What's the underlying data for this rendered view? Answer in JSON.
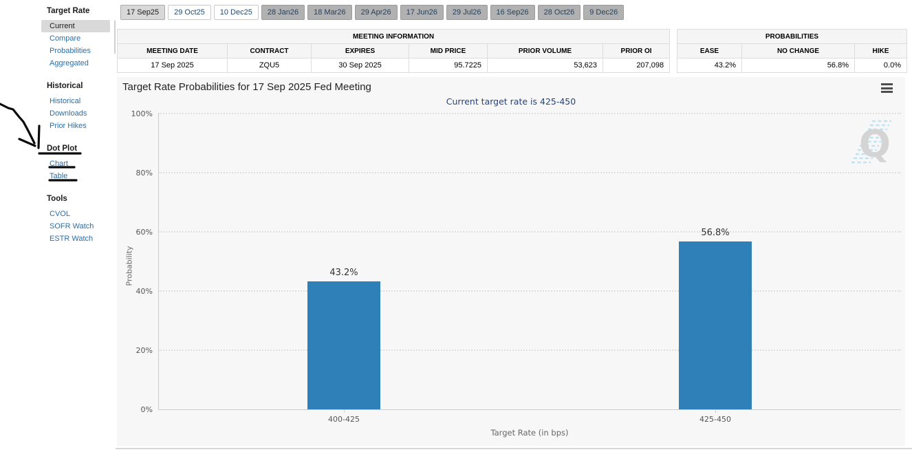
{
  "sidebar": {
    "sections": [
      {
        "title": "Target Rate",
        "items": [
          {
            "label": "Current",
            "selected": true
          },
          {
            "label": "Compare"
          },
          {
            "label": "Probabilities"
          },
          {
            "label": "Aggregated"
          }
        ]
      },
      {
        "title": "Historical",
        "items": [
          {
            "label": "Historical"
          },
          {
            "label": "Downloads"
          },
          {
            "label": "Prior Hikes"
          }
        ]
      },
      {
        "title": "Dot Plot",
        "items": [
          {
            "label": "Chart"
          },
          {
            "label": "Table"
          }
        ]
      },
      {
        "title": "Tools",
        "items": [
          {
            "label": "CVOL"
          },
          {
            "label": "SOFR Watch"
          },
          {
            "label": "ESTR Watch"
          }
        ]
      }
    ]
  },
  "meeting_tabs": [
    {
      "label": "17 Sep25",
      "state": "selected"
    },
    {
      "label": "29 Oct25",
      "state": "white"
    },
    {
      "label": "10 Dec25",
      "state": "white"
    },
    {
      "label": "28 Jan26",
      "state": "gray"
    },
    {
      "label": "18 Mar26",
      "state": "gray"
    },
    {
      "label": "29 Apr26",
      "state": "gray"
    },
    {
      "label": "17 Jun26",
      "state": "gray"
    },
    {
      "label": "29 Jul26",
      "state": "gray"
    },
    {
      "label": "16 Sep26",
      "state": "gray"
    },
    {
      "label": "28 Oct26",
      "state": "gray"
    },
    {
      "label": "9 Dec26",
      "state": "gray"
    }
  ],
  "meeting_info": {
    "title": "MEETING INFORMATION",
    "columns": [
      "MEETING DATE",
      "CONTRACT",
      "EXPIRES",
      "MID PRICE",
      "PRIOR VOLUME",
      "PRIOR OI"
    ],
    "row": {
      "meeting_date": "17 Sep 2025",
      "contract": "ZQU5",
      "expires": "30 Sep 2025",
      "mid_price": "95.7225",
      "prior_volume": "53,623",
      "prior_oi": "207,098"
    }
  },
  "probabilities": {
    "title": "PROBABILITIES",
    "columns": [
      "EASE",
      "NO CHANGE",
      "HIKE"
    ],
    "values": {
      "ease": "43.2%",
      "no_change": "56.8%",
      "hike": "0.0%"
    }
  },
  "chart_data": {
    "type": "bar",
    "title": "Target Rate Probabilities for 17 Sep 2025 Fed Meeting",
    "subtitle": "Current target rate is 425-450",
    "categories": [
      "400-425",
      "425-450"
    ],
    "values": [
      43.2,
      56.8
    ],
    "value_labels": [
      "43.2%",
      "56.8%"
    ],
    "xlabel": "Target Rate (in bps)",
    "ylabel": "Probability",
    "ylim": [
      0,
      100
    ],
    "yticks": [
      "0%",
      "20%",
      "40%",
      "60%",
      "80%",
      "100%"
    ],
    "grid": "dotted horizontal",
    "legend": "none",
    "bar_color": "#2f7fb9"
  },
  "icons": {
    "chart_menu": "hamburger-menu",
    "watermark": "QuikStrike Q logo"
  },
  "colors": {
    "bar_blue": "#2f7fb9",
    "link_blue": "#2e6da4",
    "navy_text": "#27427c",
    "chart_bg": "#f7f7f7",
    "selected_tab_bg": "#d8d8d8",
    "gray_tab_bg": "#b1b1b1"
  }
}
